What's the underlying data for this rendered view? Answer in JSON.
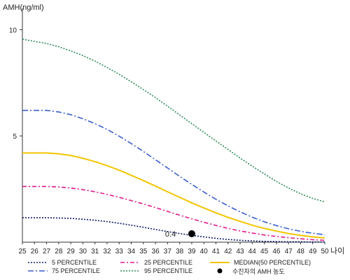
{
  "chart_data": {
    "type": "line",
    "ylabel": "AMH(ng/ml)",
    "xlabel": "나이",
    "xlim": [
      25,
      50
    ],
    "ylim": [
      0,
      11
    ],
    "x_ticks": [
      25,
      26,
      27,
      28,
      29,
      30,
      31,
      32,
      33,
      34,
      35,
      36,
      37,
      38,
      39,
      40,
      41,
      42,
      43,
      44,
      45,
      46,
      47,
      48,
      49,
      50
    ],
    "y_ticks": [
      5,
      10
    ],
    "grid": false,
    "legend_position": "bottom",
    "x": [
      25,
      26,
      27,
      28,
      29,
      30,
      31,
      32,
      33,
      34,
      35,
      36,
      37,
      38,
      39,
      40,
      41,
      42,
      43,
      44,
      45,
      46,
      47,
      48,
      49,
      50
    ],
    "series": [
      {
        "name": "5 PERCENTILE",
        "color": "#0b1a6b",
        "dash": "2,2",
        "values": [
          1.15,
          1.15,
          1.15,
          1.14,
          1.12,
          1.08,
          1.03,
          0.97,
          0.89,
          0.8,
          0.7,
          0.6,
          0.5,
          0.41,
          0.32,
          0.25,
          0.18,
          0.13,
          0.09,
          0.06,
          0.04,
          0.03,
          0.02,
          0.02,
          0.01,
          0.01
        ]
      },
      {
        "name": "25 PERCENTILE",
        "color": "#e0198c",
        "dash": "6,3,2,3",
        "values": [
          2.62,
          2.62,
          2.62,
          2.6,
          2.55,
          2.47,
          2.37,
          2.25,
          2.11,
          1.96,
          1.8,
          1.63,
          1.45,
          1.27,
          1.1,
          0.94,
          0.79,
          0.65,
          0.53,
          0.43,
          0.34,
          0.27,
          0.21,
          0.16,
          0.12,
          0.09
        ]
      },
      {
        "name": "MEDIAN(50 PERCENTILE)",
        "color": "#f2c500",
        "dash": "",
        "values": [
          4.2,
          4.2,
          4.2,
          4.16,
          4.08,
          3.95,
          3.79,
          3.6,
          3.39,
          3.15,
          2.9,
          2.64,
          2.37,
          2.11,
          1.85,
          1.61,
          1.38,
          1.17,
          0.98,
          0.8,
          0.65,
          0.52,
          0.41,
          0.32,
          0.25,
          0.2
        ]
      },
      {
        "name": "75 PERCENTILE",
        "color": "#3a5fcd",
        "dash": "8,3,2,3",
        "values": [
          6.2,
          6.2,
          6.2,
          6.13,
          6.0,
          5.81,
          5.58,
          5.31,
          4.99,
          4.64,
          4.27,
          3.88,
          3.49,
          3.1,
          2.72,
          2.36,
          2.02,
          1.71,
          1.43,
          1.18,
          0.96,
          0.78,
          0.63,
          0.51,
          0.42,
          0.35
        ]
      },
      {
        "name": "95 PERCENTILE",
        "color": "#2e8b57",
        "dash": "2,2",
        "values": [
          9.55,
          9.45,
          9.35,
          9.2,
          9.0,
          8.78,
          8.52,
          8.22,
          7.9,
          7.55,
          7.18,
          6.8,
          6.4,
          5.99,
          5.58,
          5.17,
          4.76,
          4.36,
          3.96,
          3.58,
          3.21,
          2.86,
          2.55,
          2.28,
          2.06,
          1.9
        ]
      }
    ],
    "patient": {
      "name": "수진자의 AMH 농도",
      "x": 39,
      "y": 0.4,
      "label": "0.4",
      "color": "#000000"
    }
  }
}
